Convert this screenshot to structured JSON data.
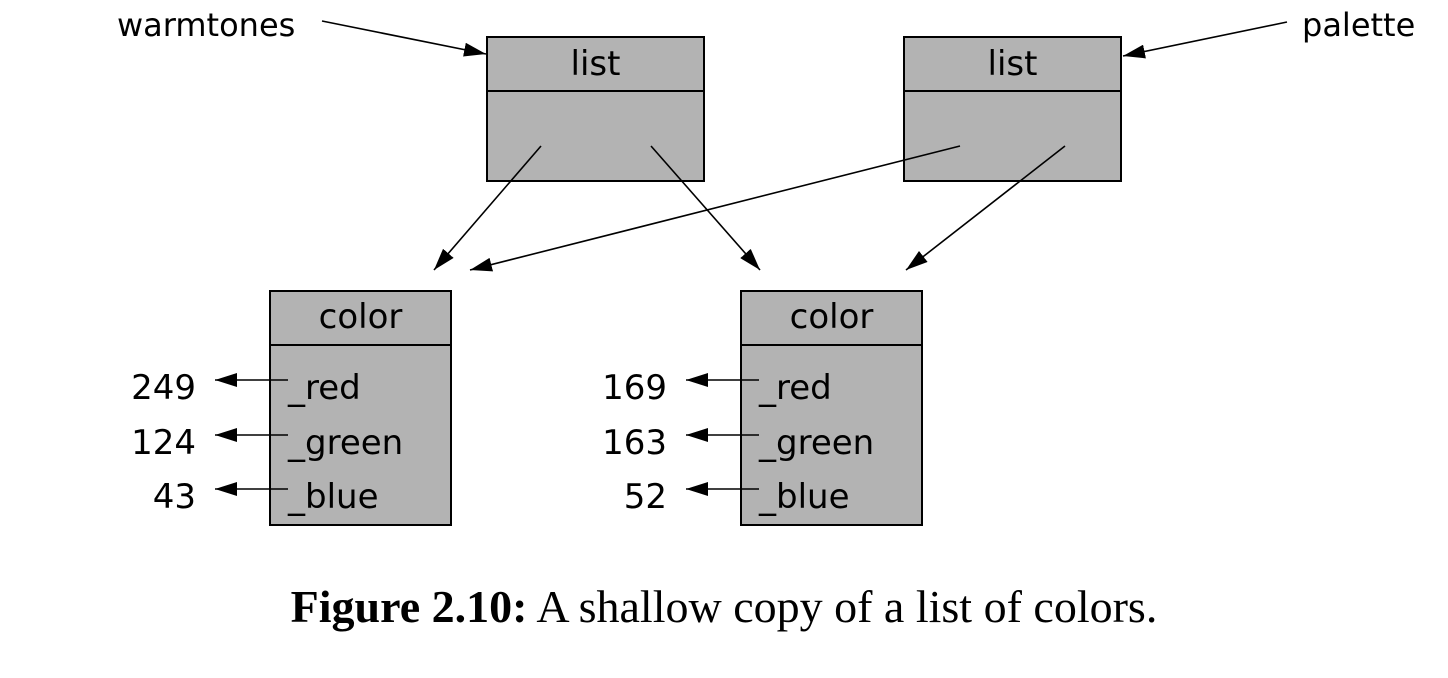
{
  "variables": {
    "warmtones": "warmtones",
    "palette": "palette"
  },
  "lists": [
    {
      "type": "list"
    },
    {
      "type": "list"
    }
  ],
  "colors": [
    {
      "type": "color",
      "fields": [
        {
          "name": "_red",
          "value": "249"
        },
        {
          "name": "_green",
          "value": "124"
        },
        {
          "name": "_blue",
          "value": "43"
        }
      ]
    },
    {
      "type": "color",
      "fields": [
        {
          "name": "_red",
          "value": "169"
        },
        {
          "name": "_green",
          "value": "163"
        },
        {
          "name": "_blue",
          "value": "52"
        }
      ]
    }
  ],
  "caption": {
    "label": "Figure 2.10:",
    "text": " A shallow copy of a list of colors."
  },
  "colors_style": {
    "box_fill": "#b3b3b3",
    "stroke": "#000000"
  }
}
